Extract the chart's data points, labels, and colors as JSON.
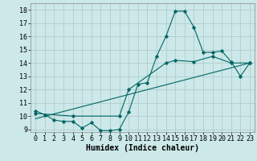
{
  "title": "",
  "xlabel": "Humidex (Indice chaleur)",
  "xlim": [
    -0.5,
    23.5
  ],
  "ylim": [
    8.8,
    18.5
  ],
  "yticks": [
    9,
    10,
    11,
    12,
    13,
    14,
    15,
    16,
    17,
    18
  ],
  "xticks": [
    0,
    1,
    2,
    3,
    4,
    5,
    6,
    7,
    8,
    9,
    10,
    11,
    12,
    13,
    14,
    15,
    16,
    17,
    18,
    19,
    20,
    21,
    22,
    23
  ],
  "background_color": "#cce8e8",
  "grid_color": "#b0cccc",
  "line_color": "#006666",
  "series1_x": [
    0,
    1,
    2,
    3,
    4,
    5,
    6,
    7,
    8,
    9,
    10,
    11,
    12,
    13,
    14,
    15,
    16,
    17,
    18,
    19,
    20,
    21,
    22,
    23
  ],
  "series1_y": [
    10.4,
    10.1,
    9.7,
    9.6,
    9.6,
    9.1,
    9.5,
    8.9,
    8.9,
    9.0,
    10.3,
    12.4,
    12.5,
    14.5,
    16.0,
    17.9,
    17.9,
    16.7,
    14.8,
    14.8,
    14.9,
    14.1,
    13.0,
    14.0
  ],
  "series2_x": [
    0,
    4,
    9,
    10,
    14,
    15,
    17,
    19,
    21,
    23
  ],
  "series2_y": [
    10.2,
    10.0,
    10.0,
    12.0,
    14.0,
    14.2,
    14.1,
    14.5,
    14.0,
    14.0
  ],
  "series3_x": [
    0,
    23
  ],
  "series3_y": [
    9.8,
    14.0
  ],
  "font_family": "monospace",
  "xlabel_fontsize": 7,
  "tick_fontsize": 6
}
